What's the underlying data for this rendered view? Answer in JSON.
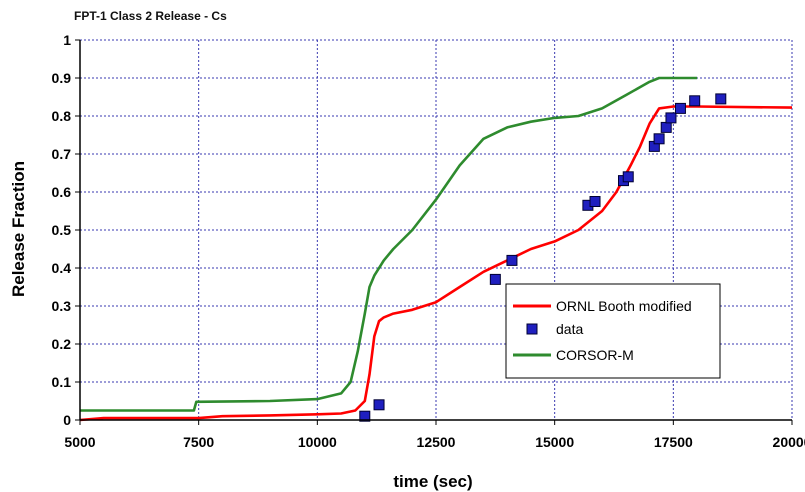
{
  "chart_data": {
    "type": "line",
    "title": "FPT-1 Class 2 Release - Cs",
    "xlabel": "time (sec)",
    "ylabel": "Release Fraction",
    "xlim": [
      5000,
      20000
    ],
    "ylim": [
      0,
      1
    ],
    "x_ticks": [
      5000,
      7500,
      10000,
      12500,
      15000,
      17500,
      20000
    ],
    "x_tick_labels": [
      "5000",
      "7500",
      "10000",
      "12500",
      "15000",
      "17500",
      "20000"
    ],
    "y_ticks": [
      0,
      0.1,
      0.2,
      0.3,
      0.4,
      0.5,
      0.6,
      0.7,
      0.8,
      0.9,
      1
    ],
    "y_tick_labels": [
      "0",
      "0.1",
      "0.2",
      "0.3",
      "0.4",
      "0.5",
      "0.6",
      "0.7",
      "0.8",
      "0.9",
      "1"
    ],
    "grid": true,
    "legend_position": "center-right",
    "series": [
      {
        "name": "ORNL Booth modified",
        "kind": "line",
        "color": "#ff0000",
        "x": [
          5000,
          5500,
          7500,
          8000,
          9000,
          10000,
          10500,
          10800,
          11000,
          11100,
          11200,
          11300,
          11400,
          11600,
          12000,
          12500,
          13000,
          13500,
          14000,
          14500,
          15000,
          15500,
          16000,
          16300,
          16600,
          16800,
          17000,
          17200,
          17500,
          18000,
          20000
        ],
        "y": [
          0.0,
          0.005,
          0.005,
          0.01,
          0.012,
          0.015,
          0.017,
          0.025,
          0.05,
          0.12,
          0.22,
          0.26,
          0.27,
          0.28,
          0.29,
          0.31,
          0.35,
          0.39,
          0.42,
          0.45,
          0.47,
          0.5,
          0.55,
          0.6,
          0.67,
          0.72,
          0.78,
          0.82,
          0.825,
          0.825,
          0.822
        ]
      },
      {
        "name": "data",
        "kind": "scatter",
        "color": "#1f1fbf",
        "x": [
          11000,
          11300,
          13750,
          14100,
          15700,
          15850,
          16450,
          16550,
          17100,
          17200,
          17350,
          17450,
          17650,
          17950,
          18500
        ],
        "y": [
          0.01,
          0.04,
          0.37,
          0.42,
          0.565,
          0.575,
          0.63,
          0.64,
          0.72,
          0.74,
          0.77,
          0.795,
          0.82,
          0.84,
          0.845
        ]
      },
      {
        "name": "CORSOR-M",
        "kind": "line",
        "color": "#2e8b2e",
        "x": [
          5000,
          7400,
          7450,
          9000,
          10000,
          10500,
          10700,
          10850,
          11000,
          11100,
          11200,
          11400,
          11600,
          12000,
          12500,
          13000,
          13500,
          14000,
          14500,
          15000,
          15500,
          16000,
          16500,
          17000,
          17200,
          17500,
          18000
        ],
        "y": [
          0.025,
          0.025,
          0.048,
          0.05,
          0.055,
          0.07,
          0.1,
          0.18,
          0.28,
          0.35,
          0.38,
          0.42,
          0.45,
          0.5,
          0.58,
          0.67,
          0.74,
          0.77,
          0.785,
          0.795,
          0.8,
          0.82,
          0.855,
          0.89,
          0.9,
          0.9,
          0.9
        ]
      }
    ]
  }
}
